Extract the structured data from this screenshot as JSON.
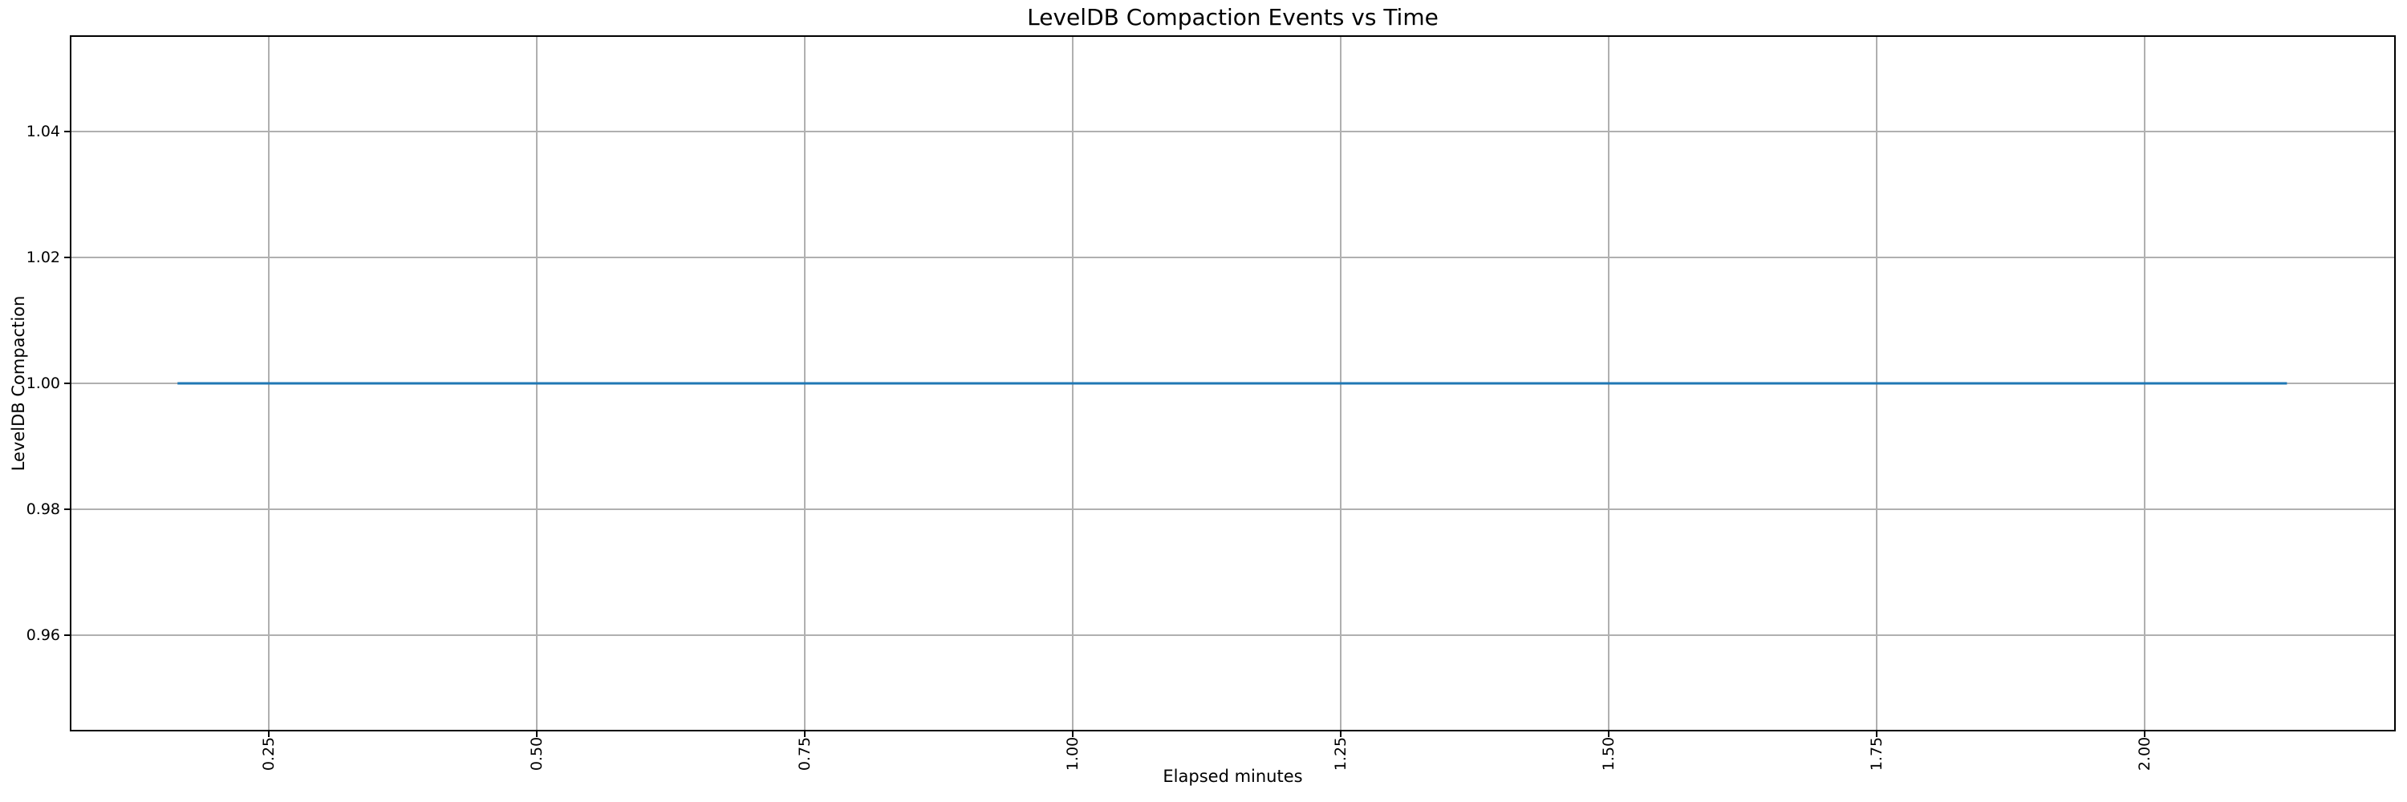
{
  "figure": {
    "background_color": "#ffffff",
    "text_color": "#000000"
  },
  "chart_data": {
    "type": "line",
    "title": "LevelDB Compaction Events vs Time",
    "xlabel": "Elapsed minutes",
    "ylabel": "LevelDB Compaction",
    "xlim": [
      0.066,
      2.233
    ],
    "ylim": [
      0.945,
      1.055
    ],
    "x_ticks": [
      0.25,
      0.5,
      0.75,
      1.0,
      1.25,
      1.5,
      1.75,
      2.0
    ],
    "x_tick_labels": [
      "0.25",
      "0.50",
      "0.75",
      "1.00",
      "1.25",
      "1.50",
      "1.75",
      "2.00"
    ],
    "x_tick_rotation_deg": 90,
    "y_ticks": [
      0.96,
      0.98,
      1.0,
      1.02,
      1.04
    ],
    "y_tick_labels": [
      "0.96",
      "0.98",
      "1.00",
      "1.02",
      "1.04"
    ],
    "grid": true,
    "legend_position": "none",
    "series": [
      {
        "name": "LevelDB Compaction",
        "color": "#1f77b4",
        "x": [
          0.165,
          2.133
        ],
        "y": [
          1.0,
          1.0
        ]
      }
    ]
  },
  "colors": {
    "line": "#1f77b4",
    "grid": "#b0b0b0",
    "spine": "#000000",
    "tick": "#000000"
  }
}
